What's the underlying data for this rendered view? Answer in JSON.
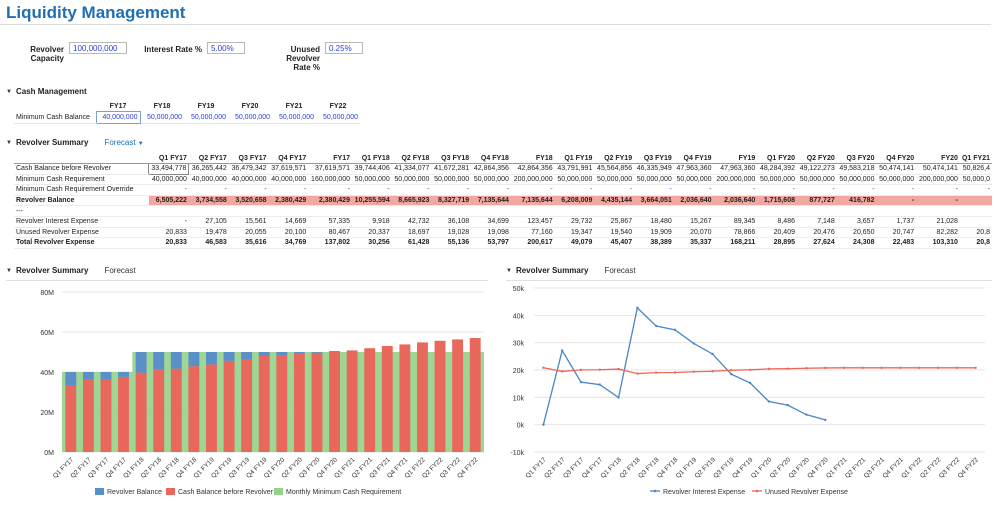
{
  "page": {
    "title": "Liquidity Management"
  },
  "params": {
    "revolver_capacity_label": "Revolver Capacity",
    "revolver_capacity_value": "100,000,000",
    "interest_rate_label": "Interest Rate %",
    "interest_rate_value": "5.00%",
    "unused_rate_label": "Unused Revolver Rate %",
    "unused_rate_value": "0.25%"
  },
  "cash_management": {
    "title": "Cash Management",
    "headers": [
      "FY17",
      "FY18",
      "FY19",
      "FY20",
      "FY21",
      "FY22"
    ],
    "row_label": "Minimum Cash Balance",
    "values": [
      "40,000,000",
      "50,000,000",
      "50,000,000",
      "50,000,000",
      "50,000,000",
      "50,000,000"
    ]
  },
  "revolver_summary": {
    "title": "Revolver Summary",
    "forecast_label": "Forecast",
    "headers": [
      "Q1 FY17",
      "Q2 FY17",
      "Q3 FY17",
      "Q4 FY17",
      "FY17",
      "Q1 FY18",
      "Q2 FY18",
      "Q3 FY18",
      "Q4 FY18",
      "FY18",
      "Q1 FY19",
      "Q2 FY19",
      "Q3 FY19",
      "Q4 FY19",
      "FY19",
      "Q1 FY20",
      "Q2 FY20",
      "Q3 FY20",
      "Q4 FY20",
      "FY20",
      "Q1 FY21"
    ],
    "rows": [
      {
        "label": "Cash Balance before Revolver",
        "style": "",
        "values": [
          "33,494,778",
          "36,265,442",
          "36,479,342",
          "37,619,571",
          "37,619,571",
          "39,744,406",
          "41,334,077",
          "41,672,281",
          "42,864,356",
          "42,864,356",
          "43,791,991",
          "45,564,856",
          "46,335,949",
          "47,963,360",
          "47,963,360",
          "48,284,392",
          "49,122,273",
          "49,583,218",
          "50,474,141",
          "50,474,141",
          "50,826,4"
        ]
      },
      {
        "label": "Minimum Cash Requirement",
        "style": "",
        "values": [
          "40,000,000",
          "40,000,000",
          "40,000,000",
          "40,000,000",
          "160,000,000",
          "50,000,000",
          "50,000,000",
          "50,000,000",
          "50,000,000",
          "200,000,000",
          "50,000,000",
          "50,000,000",
          "50,000,000",
          "50,000,000",
          "200,000,000",
          "50,000,000",
          "50,000,000",
          "50,000,000",
          "50,000,000",
          "200,000,000",
          "50,000,0"
        ]
      },
      {
        "label": "Minimum Cash Requirement Override",
        "style": "blue",
        "values": [
          "-",
          "-",
          "-",
          "-",
          "-",
          "-",
          "-",
          "-",
          "-",
          "-",
          "-",
          "-",
          "-",
          "-",
          "-",
          "-",
          "-",
          "-",
          "-",
          "-",
          "-"
        ]
      },
      {
        "label": "Revolver Balance",
        "style": "bold pink",
        "values": [
          "6,505,222",
          "3,734,558",
          "3,520,658",
          "2,380,429",
          "2,380,429",
          "10,255,594",
          "8,665,923",
          "8,327,719",
          "7,135,644",
          "7,135,644",
          "6,208,009",
          "4,435,144",
          "3,664,051",
          "2,036,640",
          "2,036,640",
          "1,715,608",
          "877,727",
          "416,782",
          "-",
          "-",
          ""
        ]
      },
      {
        "label": "---",
        "style": "",
        "values": [
          "",
          "",
          "",
          "",
          "",
          "",
          "",
          "",
          "",
          "",
          "",
          "",
          "",
          "",
          "",
          "",
          "",
          "",
          "",
          "",
          ""
        ]
      },
      {
        "label": "Revolver Interest Expense",
        "style": "",
        "values": [
          "-",
          "27,105",
          "15,561",
          "14,669",
          "57,335",
          "9,918",
          "42,732",
          "36,108",
          "34,699",
          "123,457",
          "29,732",
          "25,867",
          "18,480",
          "15,267",
          "89,345",
          "8,486",
          "7,148",
          "3,657",
          "1,737",
          "21,028",
          ""
        ]
      },
      {
        "label": "Unused Revolver Expense",
        "style": "",
        "values": [
          "20,833",
          "19,478",
          "20,055",
          "20,100",
          "80,467",
          "20,337",
          "18,697",
          "19,028",
          "19,098",
          "77,160",
          "19,347",
          "19,540",
          "19,909",
          "20,070",
          "78,866",
          "20,409",
          "20,476",
          "20,650",
          "20,747",
          "82,282",
          "20,8"
        ]
      },
      {
        "label": "Total Revolver Expense",
        "style": "bold total",
        "values": [
          "20,833",
          "46,583",
          "35,616",
          "34,769",
          "137,802",
          "30,256",
          "61,428",
          "55,136",
          "53,797",
          "200,617",
          "49,079",
          "45,407",
          "38,389",
          "35,337",
          "168,211",
          "28,895",
          "27,624",
          "24,308",
          "22,483",
          "103,310",
          "20,8"
        ]
      }
    ]
  },
  "chart_left": {
    "title": "Revolver Summary",
    "tab": "Forecast"
  },
  "chart_right": {
    "title": "Revolver Summary",
    "tab": "Forecast"
  },
  "chart_data": [
    {
      "type": "bar",
      "categories": [
        "Q1 FY17",
        "Q2 FY17",
        "Q3 FY17",
        "Q4 FY17",
        "Q1 FY18",
        "Q2 FY18",
        "Q3 FY18",
        "Q4 FY18",
        "Q1 FY19",
        "Q2 FY19",
        "Q3 FY19",
        "Q4 FY19",
        "Q1 FY20",
        "Q2 FY20",
        "Q3 FY20",
        "Q4 FY20",
        "Q1 FY21",
        "Q2 FY21",
        "Q3 FY21",
        "Q4 FY21",
        "Q1 FY22",
        "Q2 FY22",
        "Q3 FY22",
        "Q4 FY22"
      ],
      "series": [
        {
          "name": "Revolver Balance",
          "color": "#5b8fc9",
          "values": [
            6.5,
            3.7,
            3.5,
            2.4,
            10.3,
            8.7,
            8.3,
            7.1,
            6.2,
            4.4,
            3.7,
            2.0,
            1.7,
            0.9,
            0.4,
            0,
            0,
            0,
            0,
            0,
            0,
            0,
            0,
            0
          ]
        },
        {
          "name": "Cash Balance before Revolver",
          "color": "#e8695c",
          "values": [
            33.5,
            36.3,
            36.5,
            37.6,
            39.7,
            41.3,
            41.7,
            42.9,
            43.8,
            45.6,
            46.3,
            48.0,
            48.3,
            49.1,
            49.6,
            50.5,
            50.8,
            51.9,
            53.0,
            53.8,
            54.8,
            55.6,
            56.3,
            57.0
          ]
        },
        {
          "name": "Monthly Minimum Cash Requirement",
          "color": "#94d28a",
          "values": [
            40,
            40,
            40,
            40,
            50,
            50,
            50,
            50,
            50,
            50,
            50,
            50,
            50,
            50,
            50,
            50,
            50,
            50,
            50,
            50,
            50,
            50,
            50,
            50
          ]
        }
      ],
      "yticks": [
        "0M",
        "20M",
        "40M",
        "60M",
        "80M"
      ],
      "ylim": [
        0,
        80
      ]
    },
    {
      "type": "line",
      "categories": [
        "Q1 FY17",
        "Q2 FY17",
        "Q3 FY17",
        "Q4 FY17",
        "Q1 FY18",
        "Q2 FY18",
        "Q3 FY18",
        "Q4 FY18",
        "Q1 FY19",
        "Q2 FY19",
        "Q3 FY19",
        "Q4 FY19",
        "Q1 FY20",
        "Q2 FY20",
        "Q3 FY20",
        "Q4 FY20",
        "Q1 FY21",
        "Q2 FY21",
        "Q3 FY21",
        "Q4 FY21",
        "Q1 FY22",
        "Q2 FY22",
        "Q3 FY22",
        "Q4 FY22"
      ],
      "series": [
        {
          "name": "Revolver Interest Expense",
          "color": "#4a86c5",
          "values": [
            0,
            27105,
            15561,
            14669,
            9918,
            42732,
            36108,
            34699,
            29732,
            25867,
            18480,
            15267,
            8486,
            7148,
            3657,
            1737,
            null,
            null,
            null,
            null,
            null,
            null,
            null,
            null
          ]
        },
        {
          "name": "Unused Revolver Expense",
          "color": "#e8695c",
          "values": [
            20833,
            19478,
            20055,
            20100,
            20337,
            18697,
            19028,
            19098,
            19347,
            19540,
            19909,
            20070,
            20409,
            20476,
            20650,
            20747,
            20800,
            20800,
            20800,
            20800,
            20800,
            20800,
            20800,
            20800
          ]
        }
      ],
      "yticks": [
        "-10k",
        "0k",
        "10k",
        "20k",
        "30k",
        "40k",
        "50k"
      ],
      "ylim": [
        -10000,
        50000
      ]
    }
  ]
}
